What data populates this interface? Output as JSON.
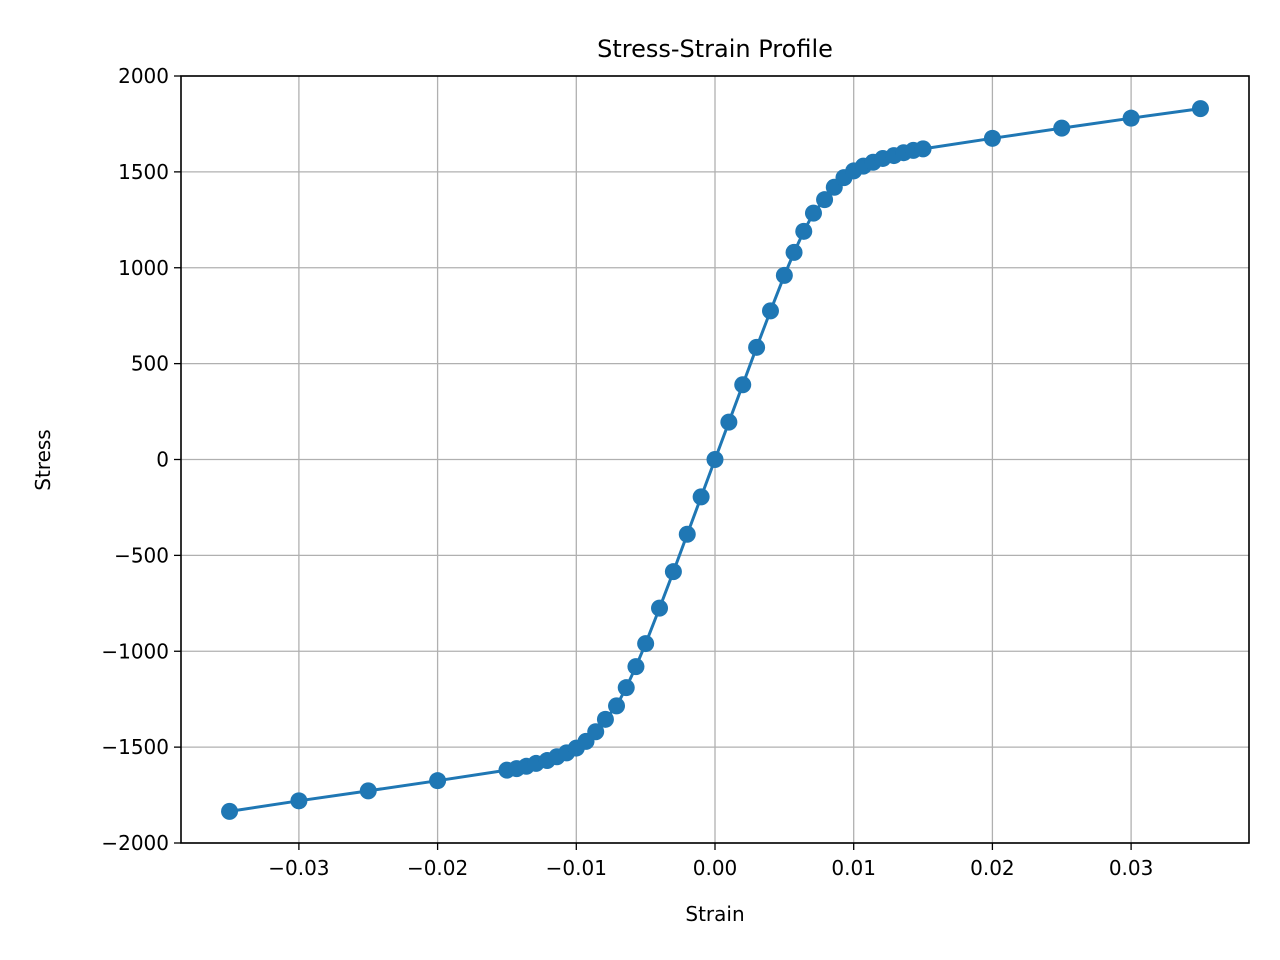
{
  "colors": {
    "series": "#1f77b4",
    "grid": "#b0b0b0",
    "axes": "#000000",
    "background": "#ffffff"
  },
  "chart_data": {
    "type": "line",
    "title": "Stress-Strain Profile",
    "xlabel": "Strain",
    "ylabel": "Stress",
    "xlim": [
      -0.0385,
      0.0385
    ],
    "ylim": [
      -2000,
      2000
    ],
    "grid": true,
    "marker": "circle",
    "x_ticks": [
      -0.03,
      -0.02,
      -0.01,
      0.0,
      0.01,
      0.02,
      0.03
    ],
    "x_tick_labels": [
      "−0.03",
      "−0.02",
      "−0.01",
      "0.00",
      "0.01",
      "0.02",
      "0.03"
    ],
    "y_ticks": [
      2000,
      1500,
      1000,
      500,
      0,
      -500,
      -1000,
      -1500,
      -2000
    ],
    "y_tick_labels": [
      "2000",
      "1500",
      "1000",
      "500",
      "0",
      "−500",
      "−1000",
      "−1500",
      "−2000"
    ],
    "series": [
      {
        "x": [
          -0.035,
          -0.03,
          -0.025,
          -0.02,
          -0.015,
          -0.0143,
          -0.0136,
          -0.0129,
          -0.0121,
          -0.0114,
          -0.0107,
          -0.01,
          -0.0093,
          -0.0086,
          -0.0079,
          -0.0071,
          -0.0064,
          -0.0057,
          -0.005,
          -0.004,
          -0.003,
          -0.002,
          -0.001,
          0.0,
          0.001,
          0.002,
          0.003,
          0.004,
          0.005,
          0.0057,
          0.0064,
          0.0071,
          0.0079,
          0.0086,
          0.0093,
          0.01,
          0.0107,
          0.0114,
          0.0121,
          0.0129,
          0.0136,
          0.0143,
          0.015,
          0.02,
          0.025,
          0.03,
          0.035
        ],
        "y": [
          -1835,
          -1780,
          -1728,
          -1675,
          -1620,
          -1612,
          -1600,
          -1585,
          -1570,
          -1550,
          -1530,
          -1505,
          -1470,
          -1420,
          -1355,
          -1285,
          -1190,
          -1080,
          -960,
          -775,
          -585,
          -390,
          -195,
          0,
          195,
          390,
          585,
          775,
          960,
          1080,
          1190,
          1285,
          1355,
          1420,
          1470,
          1505,
          1530,
          1550,
          1570,
          1585,
          1600,
          1612,
          1620,
          1675,
          1728,
          1780,
          1830
        ]
      }
    ]
  }
}
